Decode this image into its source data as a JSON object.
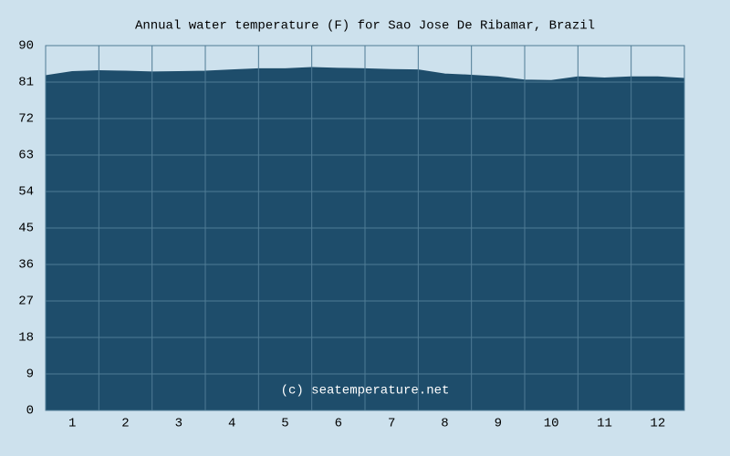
{
  "chart_data": {
    "type": "area",
    "title": "Annual water temperature (F) for Sao Jose De Ribamar, Brazil",
    "annotation": "(c) seatemperature.net",
    "x": [
      0.5,
      1.0,
      1.5,
      2.0,
      2.5,
      3.0,
      3.5,
      4.0,
      4.5,
      5.0,
      5.5,
      6.0,
      6.5,
      7.0,
      7.5,
      8.0,
      8.5,
      9.0,
      9.5,
      10.0,
      10.5,
      11.0,
      11.5,
      12.0,
      12.5
    ],
    "values": [
      82.6,
      83.6,
      83.8,
      83.7,
      83.5,
      83.6,
      83.7,
      84.0,
      84.3,
      84.3,
      84.6,
      84.4,
      84.3,
      84.1,
      84.0,
      83.0,
      82.7,
      82.3,
      81.5,
      81.4,
      82.3,
      82.0,
      82.3,
      82.3,
      81.9
    ],
    "color": "#1e4d6b",
    "xlim": [
      0.5,
      12.5
    ],
    "xticks": [
      1,
      2,
      3,
      4,
      5,
      6,
      7,
      8,
      9,
      10,
      11,
      12
    ],
    "ylim": [
      0,
      90
    ],
    "yticks": [
      0,
      9,
      18,
      27,
      36,
      45,
      54,
      63,
      72,
      81,
      90
    ],
    "grid": true
  }
}
